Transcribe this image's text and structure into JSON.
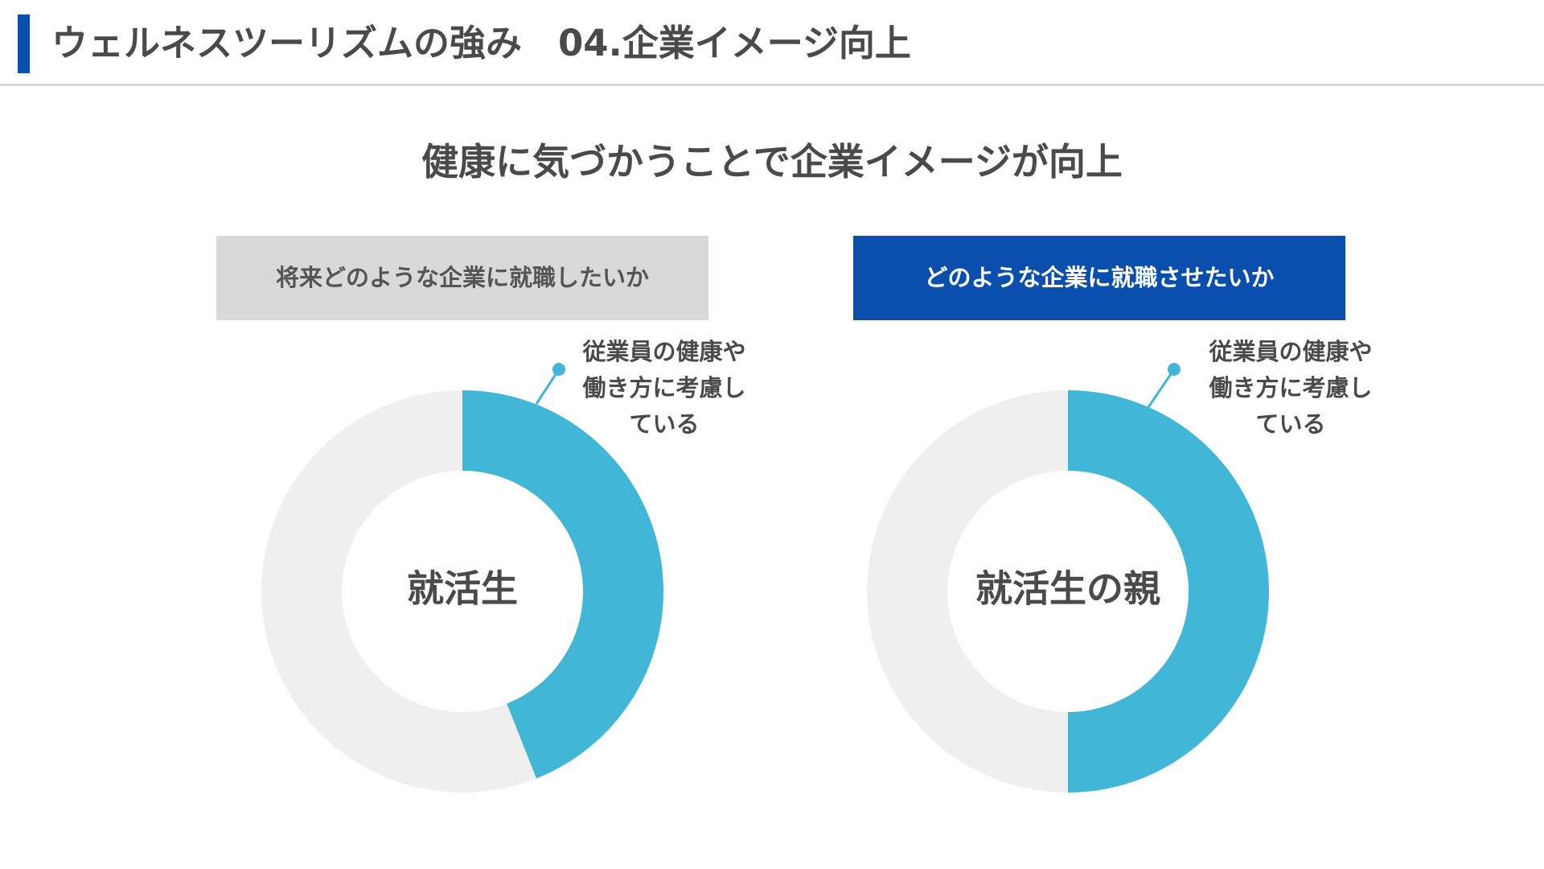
{
  "header": {
    "title": "ウェルネスツーリズムの強み　04.企業イメージ向上",
    "accent_color": "#0a4fae"
  },
  "subtitle": "健康に気づかうことで企業イメージが向上",
  "chart_data": [
    {
      "type": "pie",
      "variant": "donut",
      "panel_label": "将来どのような企業に就職したいか",
      "center_label": "就活生",
      "categories": [
        "従業員の健康や働き方に考慮している",
        ""
      ],
      "values": [
        44,
        56
      ],
      "colors": [
        "#42b6d7",
        "#efefef"
      ],
      "annotation": "従業員の健康や働き方に考慮している"
    },
    {
      "type": "pie",
      "variant": "donut",
      "panel_label": "どのような企業に就職させたいか",
      "center_label": "就活生の親",
      "categories": [
        "従業員の健康や働き方に考慮している",
        ""
      ],
      "values": [
        50,
        50
      ],
      "colors": [
        "#42b6d7",
        "#efefef"
      ],
      "annotation": "従業員の健康や働き方に考慮している"
    }
  ]
}
